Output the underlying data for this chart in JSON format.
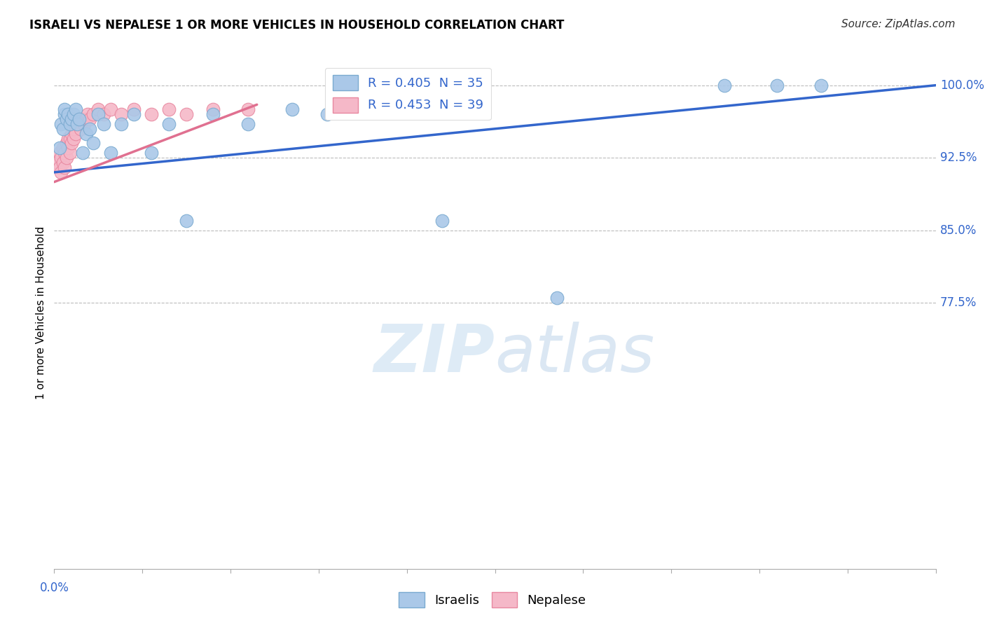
{
  "title": "ISRAELI VS NEPALESE 1 OR MORE VEHICLES IN HOUSEHOLD CORRELATION CHART",
  "source": "Source: ZipAtlas.com",
  "ylabel": "1 or more Vehicles in Household",
  "ytick_labels": [
    "100.0%",
    "92.5%",
    "85.0%",
    "77.5%"
  ],
  "ytick_values": [
    1.0,
    0.925,
    0.85,
    0.775
  ],
  "xmin": 0.0,
  "xmax": 0.5,
  "ymin": 0.5,
  "ymax": 1.03,
  "legend_israeli": "R = 0.405  N = 35",
  "legend_nepalese": "R = 0.453  N = 39",
  "legend_label_1": "Israelis",
  "legend_label_2": "Nepalese",
  "blue_color": "#aac8e8",
  "blue_edge": "#7aaad0",
  "pink_color": "#f5b8c8",
  "pink_edge": "#e888a0",
  "trend_blue": "#3366cc",
  "trend_pink": "#e07090",
  "watermark_color": "#ddeeff",
  "israeli_x": [
    0.003,
    0.004,
    0.005,
    0.006,
    0.006,
    0.007,
    0.008,
    0.009,
    0.01,
    0.011,
    0.012,
    0.013,
    0.014,
    0.016,
    0.018,
    0.02,
    0.022,
    0.025,
    0.028,
    0.032,
    0.038,
    0.045,
    0.055,
    0.065,
    0.075,
    0.09,
    0.11,
    0.135,
    0.155,
    0.175,
    0.22,
    0.285,
    0.38,
    0.41,
    0.435
  ],
  "israeli_y": [
    0.935,
    0.96,
    0.955,
    0.97,
    0.975,
    0.965,
    0.97,
    0.96,
    0.965,
    0.97,
    0.975,
    0.96,
    0.965,
    0.93,
    0.95,
    0.955,
    0.94,
    0.97,
    0.96,
    0.93,
    0.96,
    0.97,
    0.93,
    0.96,
    0.86,
    0.97,
    0.96,
    0.975,
    0.97,
    0.975,
    0.86,
    0.78,
    1.0,
    1.0,
    1.0
  ],
  "nepalese_x": [
    0.002,
    0.003,
    0.003,
    0.004,
    0.004,
    0.005,
    0.005,
    0.006,
    0.006,
    0.007,
    0.007,
    0.008,
    0.008,
    0.009,
    0.009,
    0.01,
    0.01,
    0.011,
    0.011,
    0.012,
    0.013,
    0.014,
    0.015,
    0.016,
    0.017,
    0.018,
    0.019,
    0.02,
    0.022,
    0.025,
    0.028,
    0.032,
    0.038,
    0.045,
    0.055,
    0.065,
    0.075,
    0.09,
    0.11
  ],
  "nepalese_y": [
    0.92,
    0.915,
    0.93,
    0.925,
    0.91,
    0.92,
    0.935,
    0.915,
    0.93,
    0.925,
    0.94,
    0.935,
    0.945,
    0.93,
    0.945,
    0.94,
    0.95,
    0.945,
    0.955,
    0.95,
    0.96,
    0.96,
    0.955,
    0.965,
    0.96,
    0.965,
    0.97,
    0.965,
    0.97,
    0.975,
    0.97,
    0.975,
    0.97,
    0.975,
    0.97,
    0.975,
    0.97,
    0.975,
    0.975
  ],
  "blue_trend_x": [
    0.0,
    0.5
  ],
  "blue_trend_y": [
    0.91,
    1.0
  ],
  "pink_trend_x": [
    0.0,
    0.115
  ],
  "pink_trend_y": [
    0.9,
    0.98
  ]
}
